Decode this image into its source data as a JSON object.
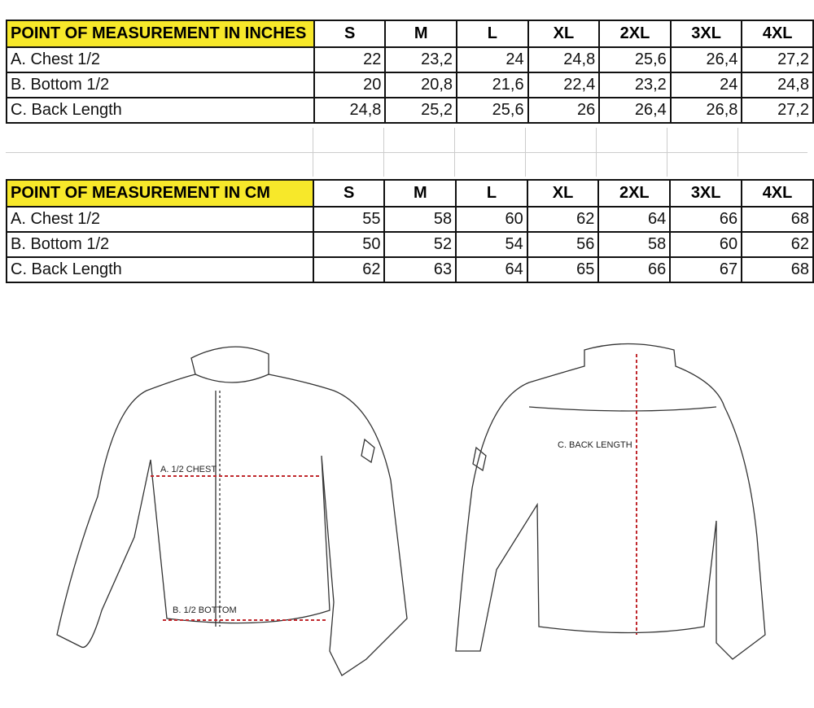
{
  "sizes": [
    "S",
    "M",
    "L",
    "XL",
    "2XL",
    "3XL",
    "4XL"
  ],
  "inches": {
    "title": "POINT OF MEASUREMENT IN INCHES",
    "rows": [
      {
        "label": "A. Chest 1/2",
        "values": [
          "22",
          "23,2",
          "24",
          "24,8",
          "25,6",
          "26,4",
          "27,2"
        ]
      },
      {
        "label": "B. Bottom 1/2",
        "values": [
          "20",
          "20,8",
          "21,6",
          "22,4",
          "23,2",
          "24",
          "24,8"
        ]
      },
      {
        "label": "C. Back Length",
        "values": [
          "24,8",
          "25,2",
          "25,6",
          "26",
          "26,4",
          "26,8",
          "27,2"
        ]
      }
    ]
  },
  "cm": {
    "title": "POINT OF MEASUREMENT IN CM",
    "rows": [
      {
        "label": "A. Chest 1/2",
        "values": [
          "55",
          "58",
          "60",
          "62",
          "64",
          "66",
          "68"
        ]
      },
      {
        "label": "B. Bottom 1/2",
        "values": [
          "50",
          "52",
          "54",
          "56",
          "58",
          "60",
          "62"
        ]
      },
      {
        "label": "C. Back Length",
        "values": [
          "62",
          "63",
          "64",
          "65",
          "66",
          "67",
          "68"
        ]
      }
    ]
  },
  "diagram": {
    "chest_label": "A. 1/2 CHEST",
    "bottom_label": "B. 1/2 BOTTOM",
    "back_label": "C. BACK LENGTH",
    "measure_color": "#c0282d"
  },
  "colors": {
    "header_highlight": "#f7e82a"
  }
}
